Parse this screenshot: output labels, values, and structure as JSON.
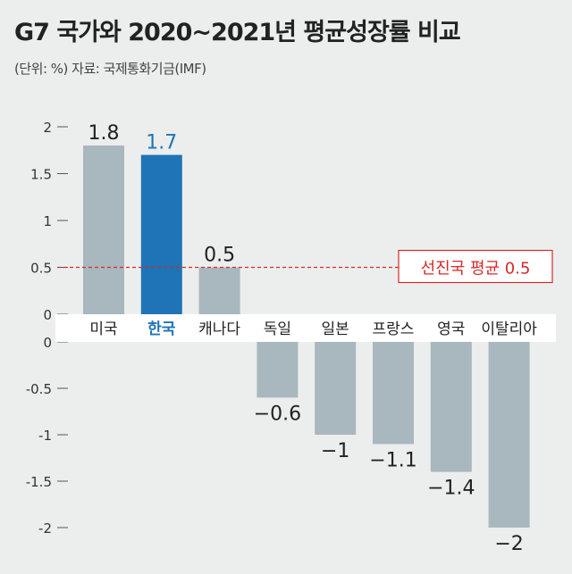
{
  "title": "G7 국가와 2020~2021년 평균성장률 비교",
  "source": "(단위: %) 자료: 국제통화기금(IMF)",
  "colors": {
    "bar": "#a9b7be",
    "highlight_bar": "#1e74b6",
    "highlight_text": "#1e74b6",
    "reference_line": "#d62a2a",
    "background": "#ebeeed",
    "label_band": "#ffffff"
  },
  "chart_data": {
    "type": "bar",
    "categories": [
      "미국",
      "한국",
      "캐나다",
      "독일",
      "일본",
      "프랑스",
      "영국",
      "이탈리아"
    ],
    "values": [
      1.8,
      1.7,
      0.5,
      -0.6,
      -1,
      -1.1,
      -1.4,
      -2
    ],
    "value_labels": [
      "1.8",
      "1.7",
      "0.5",
      "−0.6",
      "−1",
      "−1.1",
      "−1.4",
      "−2"
    ],
    "highlight": "한국",
    "positive_ticks": [
      {
        "value": 2,
        "label": "2"
      },
      {
        "value": 1.5,
        "label": "1.5"
      },
      {
        "value": 1,
        "label": "1"
      },
      {
        "value": 0.5,
        "label": "0.5"
      },
      {
        "value": 0,
        "label": "0"
      }
    ],
    "negative_ticks": [
      {
        "value": 0,
        "label": "0"
      },
      {
        "value": -0.5,
        "label": "-0.5"
      },
      {
        "value": -1,
        "label": "-1"
      },
      {
        "value": -1.5,
        "label": "-1.5"
      },
      {
        "value": -2,
        "label": "-2"
      }
    ],
    "ylim": [
      -2,
      2
    ],
    "reference_line": {
      "value": 0.5,
      "label": "선진국 평균 0.5"
    }
  }
}
